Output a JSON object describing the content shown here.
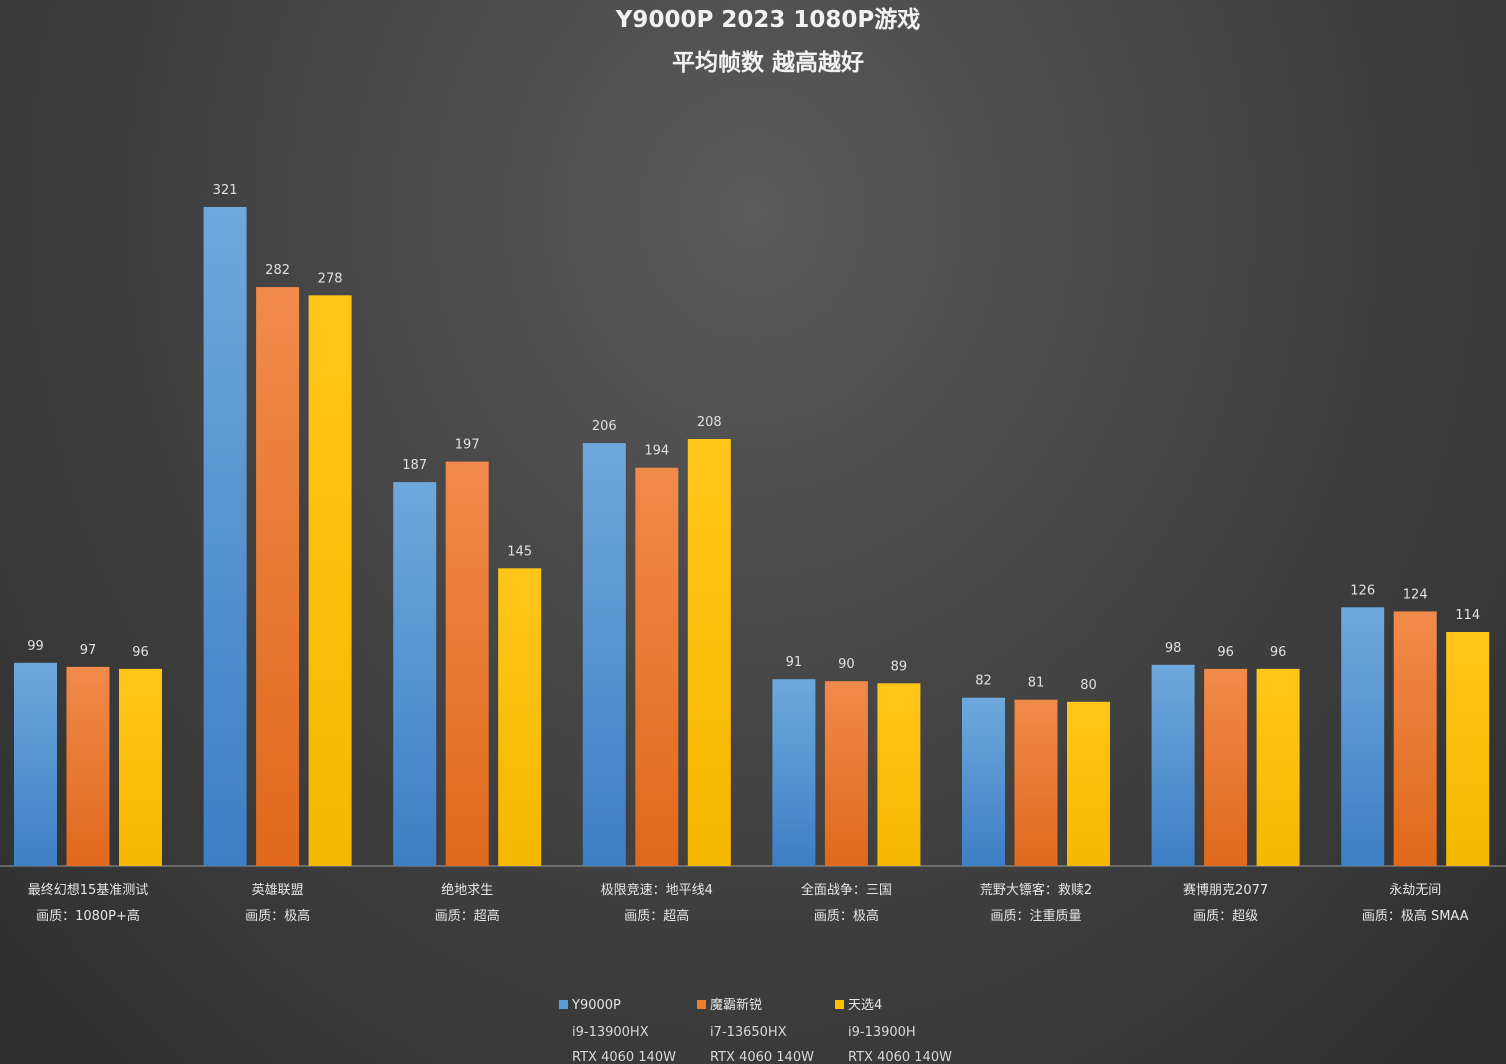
{
  "chart_data": {
    "type": "bar",
    "title": "Y9000P 2023 1080P游戏",
    "subtitle": "平均帧数 越高越好",
    "ylim": [
      0,
      321
    ],
    "grid": false,
    "legend_position": "bottom-center",
    "categories": [
      {
        "name": "最终幻想15基准测试",
        "setting": "画质：1080P+高"
      },
      {
        "name": "英雄联盟",
        "setting": "画质：极高"
      },
      {
        "name": "绝地求生",
        "setting": "画质：超高"
      },
      {
        "name": "极限竞速：地平线4",
        "setting": "画质：超高"
      },
      {
        "name": "全面战争：三国",
        "setting": "画质：极高"
      },
      {
        "name": "荒野大镖客：救赎2",
        "setting": "画质：注重质量"
      },
      {
        "name": "赛博朋克2077",
        "setting": "画质：超级"
      },
      {
        "name": "永劫无间",
        "setting": "画质：极高 SMAA"
      }
    ],
    "series": [
      {
        "name": "Y9000P",
        "cpu": "i9-13900HX",
        "gpu": "RTX 4060 140W",
        "color": "#5b9bd5",
        "values": [
          99,
          321,
          187,
          206,
          91,
          82,
          98,
          126
        ]
      },
      {
        "name": "魔霸新锐",
        "cpu": "i7-13650HX",
        "gpu": "RTX 4060 140W",
        "color": "#ed7d31",
        "values": [
          97,
          282,
          197,
          194,
          90,
          81,
          96,
          124
        ]
      },
      {
        "name": "天选4",
        "cpu": "i9-13900H",
        "gpu": "RTX 4060 140W",
        "color": "#ffc000",
        "values": [
          96,
          278,
          145,
          208,
          89,
          80,
          96,
          114
        ]
      }
    ]
  }
}
